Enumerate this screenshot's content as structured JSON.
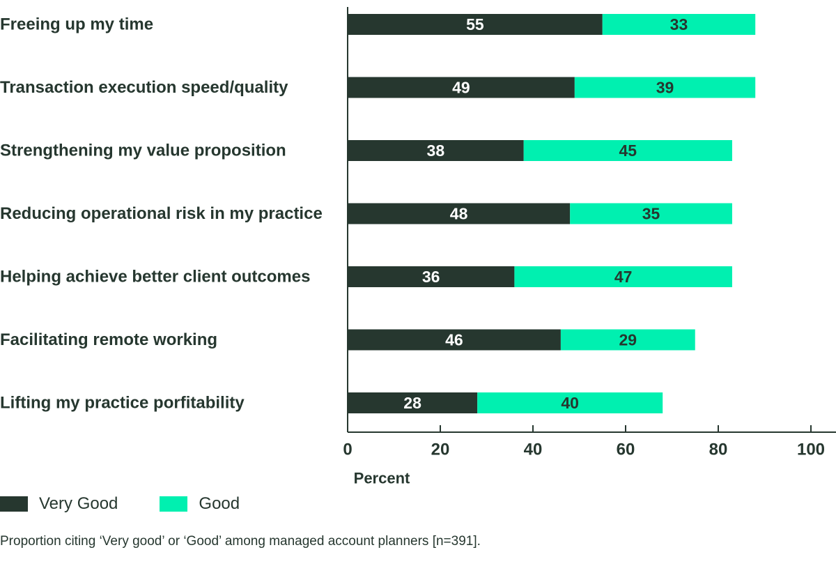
{
  "chart_data": {
    "type": "bar",
    "orientation": "horizontal",
    "stacked": true,
    "categories": [
      "Freeing up my time",
      "Transaction execution speed/quality",
      "Strengthening my value proposition",
      "Reducing operational risk in my practice",
      "Helping achieve better client outcomes",
      "Facilitating remote working",
      "Lifting my practice porfitability"
    ],
    "series": [
      {
        "name": "Very Good",
        "color": "#26372f",
        "values": [
          55,
          49,
          38,
          48,
          36,
          46,
          28
        ]
      },
      {
        "name": "Good",
        "color": "#00f0b0",
        "values": [
          33,
          39,
          45,
          35,
          47,
          29,
          40
        ]
      }
    ],
    "xlabel": "Percent",
    "ylabel": "",
    "xlim": [
      0,
      100
    ],
    "xticks": [
      0,
      20,
      40,
      60,
      80,
      100
    ],
    "grid": false,
    "legend_position": "bottom-left",
    "caption": "Proportion citing ‘Very good’ or ‘Good’ among managed account planners [n=391]."
  }
}
